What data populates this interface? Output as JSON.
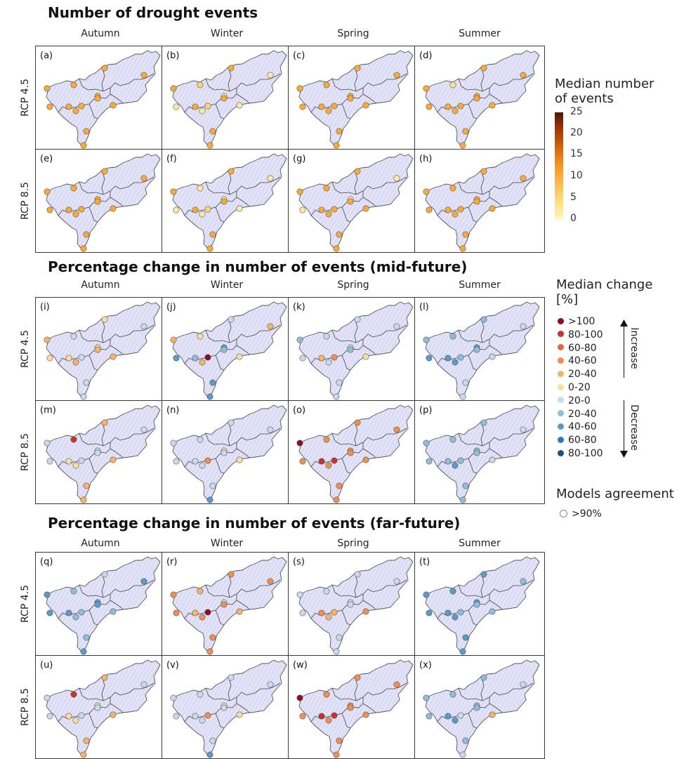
{
  "titles": {
    "events": "Number of drought events",
    "mid": "Percentage change in number of events (mid-future)",
    "far": "Percentage change in number of events (far-future)"
  },
  "seasons": [
    "Autumn",
    "Winter",
    "Spring",
    "Summer"
  ],
  "scenarios": [
    "RCP 4.5",
    "RCP 8.5"
  ],
  "legend_events": {
    "title_line1": "Median number",
    "title_line2": " of events",
    "ticks": [
      "25",
      "20",
      "15",
      "10",
      "5",
      "0"
    ]
  },
  "legend_change": {
    "title_line1": "Median change",
    "title_line2": " [%]",
    "increase_label": "Increase",
    "decrease_label": "Decrease",
    "classes": [
      {
        "label": ">100",
        "color": "#8b0f1f"
      },
      {
        "label": "80-100",
        "color": "#c8332a"
      },
      {
        "label": "60-80",
        "color": "#e2673f"
      },
      {
        "label": "40-60",
        "color": "#f08f4f"
      },
      {
        "label": "20-40",
        "color": "#f6b467"
      },
      {
        "label": "0-20",
        "color": "#fbdca2"
      },
      {
        "label": "20-0",
        "color": "#c6dcec"
      },
      {
        "label": "20-40",
        "color": "#8fbddc"
      },
      {
        "label": "40-60",
        "color": "#5a9bc9"
      },
      {
        "label": "60-80",
        "color": "#2f78b7"
      },
      {
        "label": "80-100",
        "color": "#1c4f8f"
      }
    ]
  },
  "legend_agreement": {
    "title": "Models agreement",
    "item": ">90%"
  },
  "colors": {
    "event_fill": "#fbab35",
    "event_pale": "#fde493",
    "basin_fill": "#dcdcf6",
    "basin_border": "#555555"
  },
  "panels": [
    {
      "label": "(a)",
      "dots": [
        5,
        5,
        5,
        5,
        5,
        5,
        5,
        5,
        5,
        5,
        5,
        5,
        5
      ]
    },
    {
      "label": "(b)",
      "dots": [
        5,
        4,
        5,
        6,
        6,
        6,
        5,
        4,
        5,
        6,
        6,
        5,
        5
      ]
    },
    {
      "label": "(c)",
      "dots": [
        5,
        5,
        5,
        5,
        5,
        5,
        5,
        5,
        5,
        5,
        5,
        5,
        5
      ]
    },
    {
      "label": "(d)",
      "dots": [
        5,
        3,
        5,
        5,
        5,
        5,
        5,
        5,
        5,
        5,
        5,
        5,
        5
      ]
    },
    {
      "label": "(e)",
      "dots": [
        5,
        5,
        5,
        5,
        5,
        5,
        5,
        5,
        5,
        5,
        5,
        5,
        5
      ]
    },
    {
      "label": "(f)",
      "dots": [
        5,
        6,
        5,
        6,
        6,
        6,
        5,
        4,
        5,
        6,
        6,
        5,
        5
      ]
    },
    {
      "label": "(g)",
      "dots": [
        5,
        5,
        5,
        6,
        6,
        6,
        5,
        5,
        5,
        5,
        5,
        5,
        5
      ]
    },
    {
      "label": "(h)",
      "dots": [
        5,
        5,
        5,
        5,
        5,
        5,
        5,
        5,
        5,
        5,
        5,
        5,
        5
      ]
    },
    {
      "label": "(i)",
      "dots": [
        5,
        7,
        6,
        7,
        6,
        6,
        5,
        7,
        6,
        5,
        5,
        7,
        7
      ]
    },
    {
      "label": "(j)",
      "dots": [
        5,
        6,
        7,
        5,
        9,
        9,
        8,
        1,
        8,
        5,
        6,
        9,
        9
      ]
    },
    {
      "label": "(k)",
      "dots": [
        8,
        7,
        7,
        7,
        7,
        7,
        8,
        4,
        5,
        7,
        6,
        7,
        7
      ]
    },
    {
      "label": "(l)",
      "dots": [
        8,
        8,
        8,
        7,
        9,
        9,
        8,
        8,
        9,
        9,
        7,
        7,
        7
      ]
    },
    {
      "label": "(m)",
      "dots": [
        7,
        2,
        5,
        7,
        7,
        7,
        7,
        7,
        6,
        6,
        5,
        5,
        5
      ]
    },
    {
      "label": "(n)",
      "dots": [
        7,
        7,
        7,
        7,
        7,
        6,
        7,
        4,
        7,
        7,
        6,
        7,
        9
      ]
    },
    {
      "label": "(o)",
      "dots": [
        1,
        4,
        4,
        4,
        4,
        4,
        4,
        2,
        2,
        4,
        4,
        4,
        4
      ]
    },
    {
      "label": "(p)",
      "dots": [
        8,
        8,
        8,
        7,
        8,
        8,
        8,
        8,
        8,
        9,
        7,
        8,
        8
      ]
    },
    {
      "label": "(q)",
      "dots": [
        9,
        8,
        7,
        9,
        9,
        9,
        9,
        8,
        9,
        8,
        8,
        8,
        9
      ]
    },
    {
      "label": "(r)",
      "dots": [
        4,
        5,
        4,
        4,
        4,
        7,
        4,
        1,
        5,
        4,
        5,
        4,
        4
      ]
    },
    {
      "label": "(s)",
      "dots": [
        7,
        7,
        7,
        7,
        7,
        7,
        7,
        5,
        4,
        5,
        4,
        7,
        7
      ]
    },
    {
      "label": "(t)",
      "dots": [
        9,
        9,
        9,
        8,
        9,
        9,
        8,
        8,
        9,
        9,
        8,
        9,
        9
      ]
    },
    {
      "label": "(u)",
      "dots": [
        7,
        2,
        5,
        7,
        7,
        6,
        7,
        7,
        6,
        6,
        5,
        5,
        5
      ]
    },
    {
      "label": "(v)",
      "dots": [
        7,
        7,
        7,
        7,
        7,
        6,
        7,
        4,
        7,
        7,
        6,
        7,
        9
      ]
    },
    {
      "label": "(w)",
      "dots": [
        1,
        4,
        4,
        4,
        4,
        4,
        4,
        2,
        2,
        4,
        4,
        4,
        4
      ]
    },
    {
      "label": "(x)",
      "dots": [
        8,
        8,
        8,
        7,
        8,
        8,
        8,
        7,
        9,
        9,
        5,
        8,
        7
      ]
    }
  ]
}
